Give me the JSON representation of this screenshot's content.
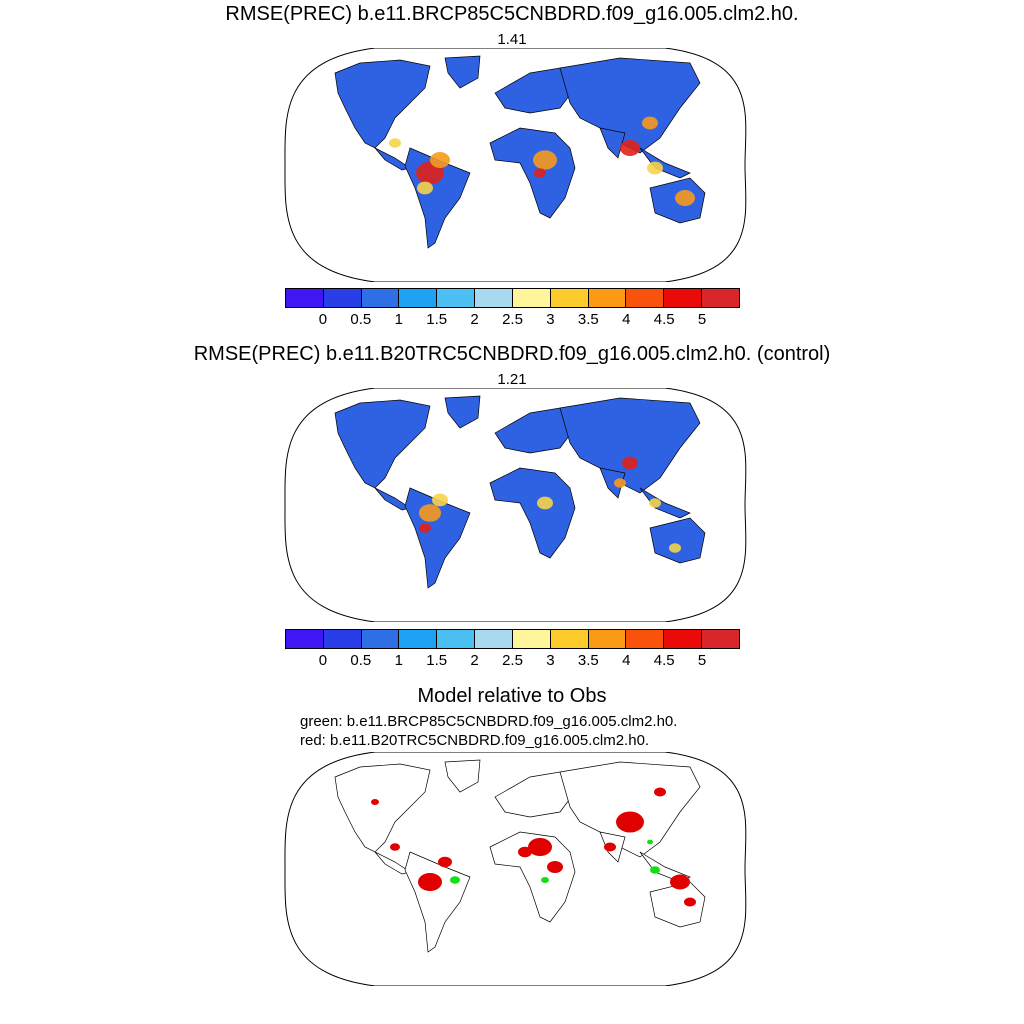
{
  "panel1": {
    "title": "RMSE(PREC) b.e11.BRCP85C5CNBDRD.f09_g16.005.clm2.h0.",
    "value": "1.41"
  },
  "panel2": {
    "title": "RMSE(PREC) b.e11.B20TRC5CNBDRD.f09_g16.005.clm2.h0. (control)",
    "value": "1.21"
  },
  "panel3": {
    "title": "Model relative to Obs",
    "green_note": "green: b.e11.BRCP85C5CNBDRD.f09_g16.005.clm2.h0.",
    "red_note": "red: b.e11.B20TRC5CNBDRD.f09_g16.005.clm2.h0."
  },
  "colorbar": {
    "labels": [
      "0",
      "0.5",
      "1",
      "1.5",
      "2",
      "2.5",
      "3",
      "3.5",
      "4",
      "4.5",
      "5"
    ],
    "colors": [
      "#4016f5",
      "#2a3ee8",
      "#2f6fe6",
      "#1ea2f4",
      "#4cc0f3",
      "#a9d9ef",
      "#fff59a",
      "#fdcb2b",
      "#fb9a14",
      "#f9520c",
      "#ea0a07",
      "#d8262b"
    ]
  },
  "map_colors": {
    "land_base": "#2f62e2",
    "land_light": "#4a90ee",
    "wet_yellow": "#f6d34a",
    "wet_orange": "#f79a1e",
    "wet_red": "#e0221a",
    "better_green": "#12e012",
    "worse_red": "#e00000"
  }
}
